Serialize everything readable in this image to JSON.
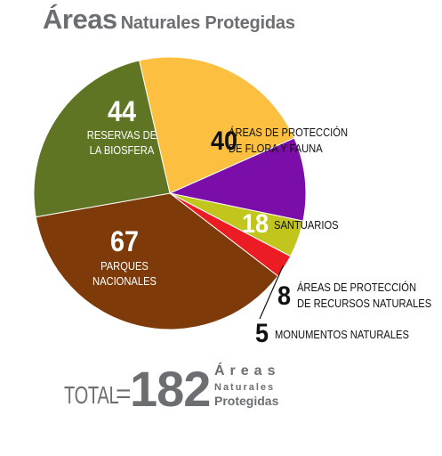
{
  "title": {
    "main": "Áreas",
    "rest": "Naturales Protegidas"
  },
  "total": {
    "label": "TOTAL",
    "equals": "=",
    "value": "182",
    "word1": "Áreas",
    "word2": "Naturales",
    "word3": "Protegidas"
  },
  "chart_data": {
    "type": "pie",
    "title": "Áreas Naturales Protegidas",
    "total": 182,
    "slices": [
      {
        "value": 40,
        "label_lines": [
          "ÁREAS DE PROTECCIÓN",
          "DE FLORA Y FAUNA"
        ],
        "color": "#fcbf3f"
      },
      {
        "value": 18,
        "label_lines": [
          "SANTUARIOS"
        ],
        "color": "#7b0da8"
      },
      {
        "value": 8,
        "label_lines": [
          "ÁREAS DE PROTECCIÓN",
          "DE RECURSOS NATURALES"
        ],
        "color": "#c1c51c"
      },
      {
        "value": 5,
        "label_lines": [
          "MONUMENTOS NATURALES"
        ],
        "color": "#ec1c24"
      },
      {
        "value": 67,
        "label_lines": [
          "PARQUES",
          "NACIONALES"
        ],
        "color": "#7e3a08"
      },
      {
        "value": 44,
        "label_lines": [
          "RESERVAS DE",
          "LA BIOSFERA"
        ],
        "color": "#5f7524"
      }
    ]
  }
}
